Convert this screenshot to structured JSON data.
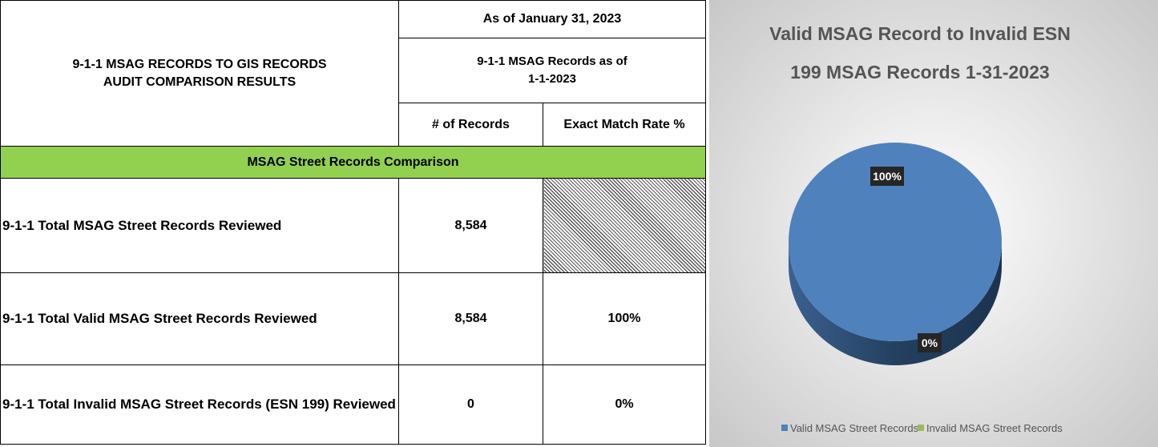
{
  "table": {
    "title": [
      "9-1-1 MSAG RECORDS TO GIS RECORDS",
      "AUDIT COMPARISON RESULTS"
    ],
    "period": "As of January 31, 2023",
    "subheader": [
      "9-1-1 MSAG Records as of",
      "1-1-2023"
    ],
    "columns": [
      "# of Records",
      "Exact Match Rate %"
    ],
    "section": "MSAG Street Records Comparison",
    "rows": [
      [
        "9-1-1 Total MSAG Street Records Reviewed",
        "8,584"
      ],
      [
        "9-1-1 Total Valid MSAG Street Records Reviewed",
        "8,584",
        "100%"
      ],
      [
        "9-1-1 Total Invalid MSAG Street Records (ESN 199) Reviewed",
        "0",
        "0%"
      ]
    ]
  },
  "chart_data": {
    "type": "pie",
    "title": [
      "Valid MSAG Record to Invalid ESN",
      "199 MSAG Records 1-31-2023"
    ],
    "categories": [
      "Valid MSAG Street Records",
      "Invalid MSAG Street Records"
    ],
    "values": [
      100,
      0
    ],
    "value_labels": [
      "100%",
      "0%"
    ],
    "colors": [
      "#4f81bd",
      "#9bbb59"
    ],
    "legend": "bottom"
  }
}
